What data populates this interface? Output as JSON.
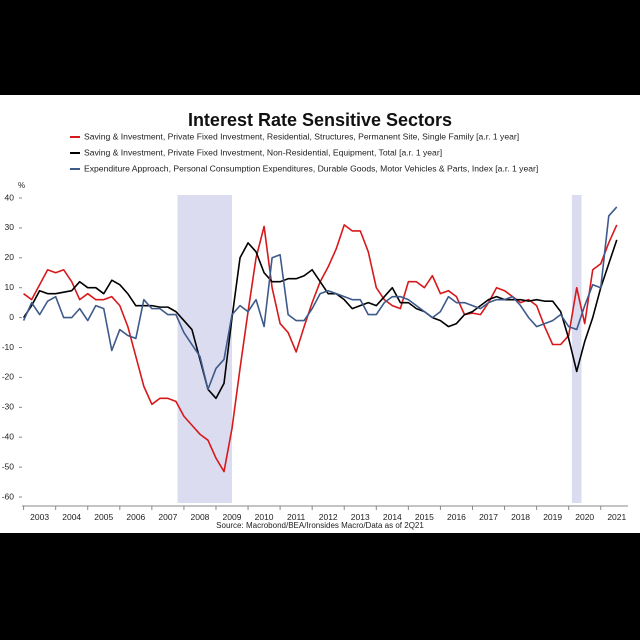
{
  "chart_data": {
    "type": "line",
    "title": "Interest Rate Sensitive Sectors",
    "y_label": "%",
    "source": "Source: Macrobond/BEA/Ironsides Macro/Data as of 2Q21",
    "x": [
      2003,
      2003.25,
      2003.5,
      2003.75,
      2004,
      2004.25,
      2004.5,
      2004.75,
      2005,
      2005.25,
      2005.5,
      2005.75,
      2006,
      2006.25,
      2006.5,
      2006.75,
      2007,
      2007.25,
      2007.5,
      2007.75,
      2008,
      2008.25,
      2008.5,
      2008.75,
      2009,
      2009.25,
      2009.5,
      2009.75,
      2010,
      2010.25,
      2010.5,
      2010.75,
      2011,
      2011.25,
      2011.5,
      2011.75,
      2012,
      2012.25,
      2012.5,
      2012.75,
      2013,
      2013.25,
      2013.5,
      2013.75,
      2014,
      2014.25,
      2014.5,
      2014.75,
      2015,
      2015.25,
      2015.5,
      2015.75,
      2016,
      2016.25,
      2016.5,
      2016.75,
      2017,
      2017.25,
      2017.5,
      2017.75,
      2018,
      2018.25,
      2018.5,
      2018.75,
      2019,
      2019.25,
      2019.5,
      2019.75,
      2020,
      2020.25,
      2020.5,
      2020.75,
      2021,
      2021.25,
      2021.5
    ],
    "series": [
      {
        "name": "Saving & Investment, Private Fixed Investment, Residential, Structures, Permanent Site, Single Family [a.r. 1 year]",
        "color": "#d7191c",
        "values": [
          8,
          6,
          11,
          16,
          15,
          16,
          12,
          6,
          8,
          6,
          6,
          7,
          4,
          -3,
          -13,
          -23,
          -29,
          -27,
          -27,
          -28,
          -33,
          -36,
          -39,
          -41,
          -47,
          -51.5,
          -37,
          -17,
          2,
          20,
          30.5,
          10,
          -2,
          -5,
          -11.5,
          -3,
          5,
          12,
          17,
          23,
          31,
          29,
          29,
          22,
          10,
          6,
          4,
          3,
          12,
          12,
          10,
          14,
          8,
          9,
          7,
          1,
          1.5,
          1,
          5,
          10,
          9,
          7,
          5,
          6,
          4,
          -3,
          -9,
          -9,
          -6,
          10,
          -2,
          16,
          18,
          25,
          31
        ]
      },
      {
        "name": "Saving & Investment, Private Fixed Investment, Non-Residential, Equipment, Total [a.r. 1 year]",
        "color": "#000000",
        "values": [
          0,
          4,
          9,
          8,
          8,
          8.5,
          9,
          12,
          10,
          10,
          8,
          12.5,
          11,
          8,
          4,
          4,
          4,
          3.5,
          3.5,
          2,
          -1,
          -4,
          -14,
          -24,
          -27,
          -22,
          0,
          20,
          25,
          22,
          15,
          12,
          12,
          13,
          13,
          14,
          16,
          12,
          8,
          8,
          6,
          3,
          4,
          5,
          4,
          7,
          10,
          5,
          5,
          3,
          2,
          0,
          -1,
          -3,
          -2,
          1,
          2,
          4,
          6,
          7,
          6,
          6,
          6,
          5.5,
          6,
          5.5,
          5.5,
          2,
          -7,
          -18,
          -8,
          0,
          10,
          18,
          26
        ]
      },
      {
        "name": "Expenditure Approach, Personal Consumption Expenditures, Durable Goods, Motor Vehicles & Parts, Index [a.r. 1 year]",
        "color": "#3d5a8a",
        "values": [
          -1,
          5,
          1,
          5.5,
          7,
          0,
          0,
          3,
          -1,
          4,
          3,
          -11,
          -4,
          -6,
          -7,
          6,
          3,
          3,
          1,
          1,
          -5,
          -9,
          -13,
          -24,
          -17,
          -14,
          1,
          4,
          2,
          6,
          -3,
          20,
          21,
          1,
          -1,
          -1,
          3,
          8,
          9,
          8,
          7,
          6,
          6,
          1,
          1,
          5,
          7,
          7,
          6,
          4,
          2,
          0,
          2,
          7,
          5,
          5,
          4,
          3,
          5,
          6,
          6,
          7,
          4,
          0,
          -3,
          -2,
          -1,
          1,
          -3,
          -4,
          4,
          11,
          10,
          34,
          37
        ]
      }
    ],
    "recessions": [
      [
        2007.8,
        2009.5
      ],
      [
        2020.1,
        2020.4
      ]
    ],
    "recession_color": "#dcdcf0",
    "xlim": [
      2002.95,
      2021.85
    ],
    "xticks": [
      2003,
      2004,
      2005,
      2006,
      2007,
      2008,
      2009,
      2010,
      2011,
      2012,
      2013,
      2014,
      2015,
      2016,
      2017,
      2018,
      2019,
      2020,
      2021
    ],
    "ylim": [
      -62,
      41
    ],
    "yticks": [
      40,
      30,
      20,
      10,
      0,
      -10,
      -20,
      -30,
      -40,
      -50,
      -60
    ]
  }
}
